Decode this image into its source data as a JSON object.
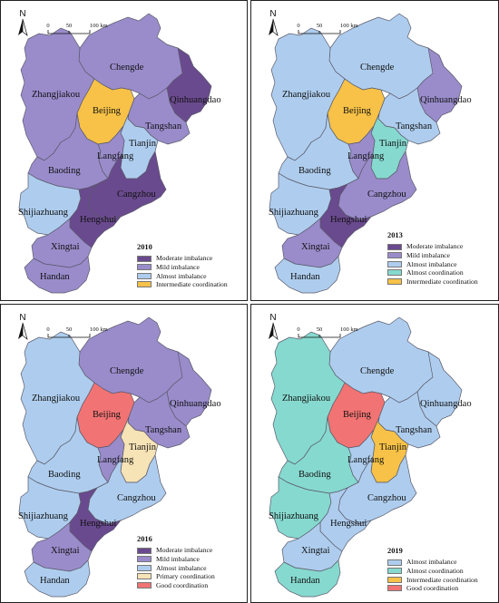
{
  "colors": {
    "moderate_imbalance": "#6a4a8e",
    "mild_imbalance": "#9a8ccb",
    "almost_imbalance": "#aecdee",
    "almost_coordination": "#86d9cf",
    "intermediate_coordination": "#f7c247",
    "primary_coordination": "#f6e3b6",
    "good_coordination": "#f27373"
  },
  "north_label": "N",
  "scale": {
    "ticks": [
      "0",
      "50",
      "100 km"
    ]
  },
  "cities": [
    "Chengde",
    "Zhangjiakou",
    "Qinhuangdao",
    "Beijing",
    "Tangshan",
    "Tianjin",
    "Langfang",
    "Baoding",
    "Cangzhou",
    "Shijiazhuang",
    "Hengshui",
    "Xingtai",
    "Handan"
  ],
  "panels": [
    {
      "year": "2010",
      "legend": [
        "Moderate imbalance",
        "Mild imbalance",
        "Almost imbalance",
        "Intermediate coordination"
      ],
      "legend_colors": [
        "moderate_imbalance",
        "mild_imbalance",
        "almost_imbalance",
        "intermediate_coordination"
      ],
      "fills": {
        "Chengde": "mild_imbalance",
        "Zhangjiakou": "mild_imbalance",
        "Qinhuangdao": "moderate_imbalance",
        "Beijing": "intermediate_coordination",
        "Tangshan": "mild_imbalance",
        "Tianjin": "almost_imbalance",
        "Langfang": "mild_imbalance",
        "Baoding": "mild_imbalance",
        "Cangzhou": "moderate_imbalance",
        "Shijiazhuang": "almost_imbalance",
        "Hengshui": "moderate_imbalance",
        "Xingtai": "mild_imbalance",
        "Handan": "mild_imbalance"
      }
    },
    {
      "year": "2013",
      "legend": [
        "Moderate imbalance",
        "Mild imbalance",
        "Almost imbalance",
        "Almost coordination",
        "Intermediate coordination"
      ],
      "legend_colors": [
        "moderate_imbalance",
        "mild_imbalance",
        "almost_imbalance",
        "almost_coordination",
        "intermediate_coordination"
      ],
      "fills": {
        "Chengde": "almost_imbalance",
        "Zhangjiakou": "almost_imbalance",
        "Qinhuangdao": "mild_imbalance",
        "Beijing": "intermediate_coordination",
        "Tangshan": "almost_imbalance",
        "Tianjin": "almost_coordination",
        "Langfang": "mild_imbalance",
        "Baoding": "almost_imbalance",
        "Cangzhou": "mild_imbalance",
        "Shijiazhuang": "almost_imbalance",
        "Hengshui": "moderate_imbalance",
        "Xingtai": "mild_imbalance",
        "Handan": "almost_imbalance"
      }
    },
    {
      "year": "2016",
      "legend": [
        "Moderate imbalance",
        "Mild imbalance",
        "Almost imbalance",
        "Primary coordination",
        "Good coordination"
      ],
      "legend_colors": [
        "moderate_imbalance",
        "mild_imbalance",
        "almost_imbalance",
        "primary_coordination",
        "good_coordination"
      ],
      "fills": {
        "Chengde": "mild_imbalance",
        "Zhangjiakou": "almost_imbalance",
        "Qinhuangdao": "mild_imbalance",
        "Beijing": "good_coordination",
        "Tangshan": "mild_imbalance",
        "Tianjin": "primary_coordination",
        "Langfang": "mild_imbalance",
        "Baoding": "almost_imbalance",
        "Cangzhou": "almost_imbalance",
        "Shijiazhuang": "almost_imbalance",
        "Hengshui": "moderate_imbalance",
        "Xingtai": "mild_imbalance",
        "Handan": "almost_imbalance"
      }
    },
    {
      "year": "2019",
      "legend": [
        "Almost imbalance",
        "Almost coordination",
        "Intermediate coordination",
        "Good coordination"
      ],
      "legend_colors": [
        "almost_imbalance",
        "almost_coordination",
        "intermediate_coordination",
        "good_coordination"
      ],
      "fills": {
        "Chengde": "almost_imbalance",
        "Zhangjiakou": "almost_coordination",
        "Qinhuangdao": "almost_imbalance",
        "Beijing": "good_coordination",
        "Tangshan": "almost_imbalance",
        "Tianjin": "intermediate_coordination",
        "Langfang": "almost_imbalance",
        "Baoding": "almost_coordination",
        "Cangzhou": "almost_imbalance",
        "Shijiazhuang": "almost_coordination",
        "Hengshui": "almost_imbalance",
        "Xingtai": "almost_imbalance",
        "Handan": "almost_coordination"
      }
    }
  ]
}
